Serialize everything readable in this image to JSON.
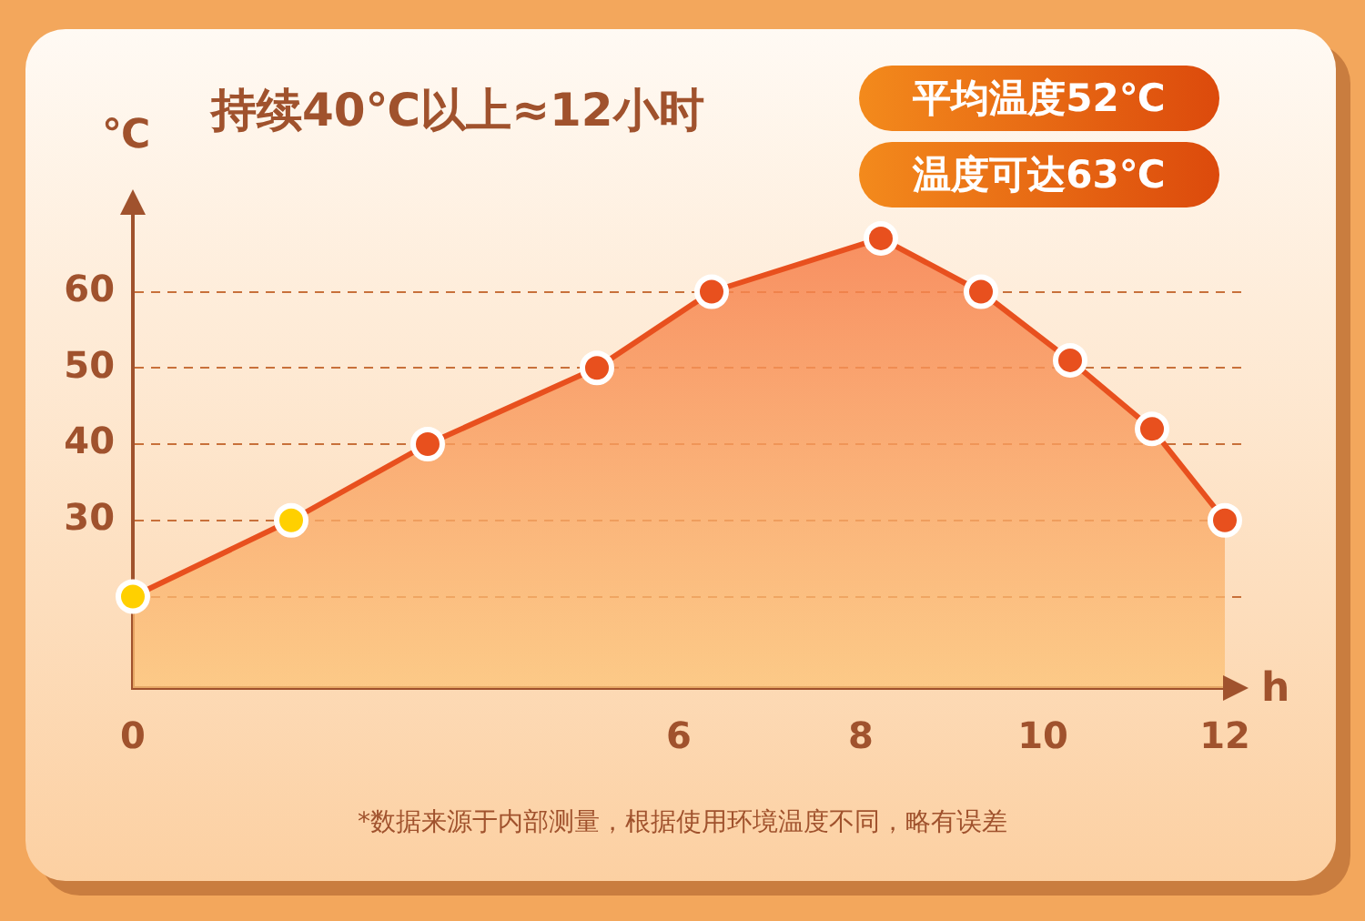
{
  "chart_data": {
    "type": "area",
    "title": "持续40℃以上≈12小时",
    "ylabel": "℃",
    "xlabel": "h",
    "annotations": [
      "平均温度52℃",
      "温度可达63℃",
      "*数据来源于内部测量，根据使用环境温度不同，略有误差"
    ],
    "x": [
      0,
      1.74,
      3.24,
      5.1,
      6.36,
      8.22,
      9.32,
      10.3,
      11.2,
      12
    ],
    "series": [
      {
        "color": "#e8501e",
        "colors": [
          "#ffd000",
          "#ffd000",
          "#e8501e",
          "#e8501e",
          "#e8501e",
          "#e8501e",
          "#e8501e",
          "#e8501e",
          "#e8501e",
          "#e8501e"
        ],
        "values": [
          20,
          30,
          40,
          50,
          60,
          67,
          60,
          51,
          42,
          30
        ]
      }
    ],
    "xlim": [
      0,
      12.2
    ],
    "xticks": [
      0,
      6,
      8,
      10,
      12
    ],
    "ylim": [
      8,
      72
    ],
    "yticks": [
      {
        "value": 20,
        "label": null
      },
      30,
      40,
      50,
      60
    ],
    "grid": "y",
    "marker": "circle",
    "line_style": "solid",
    "legend": false
  }
}
